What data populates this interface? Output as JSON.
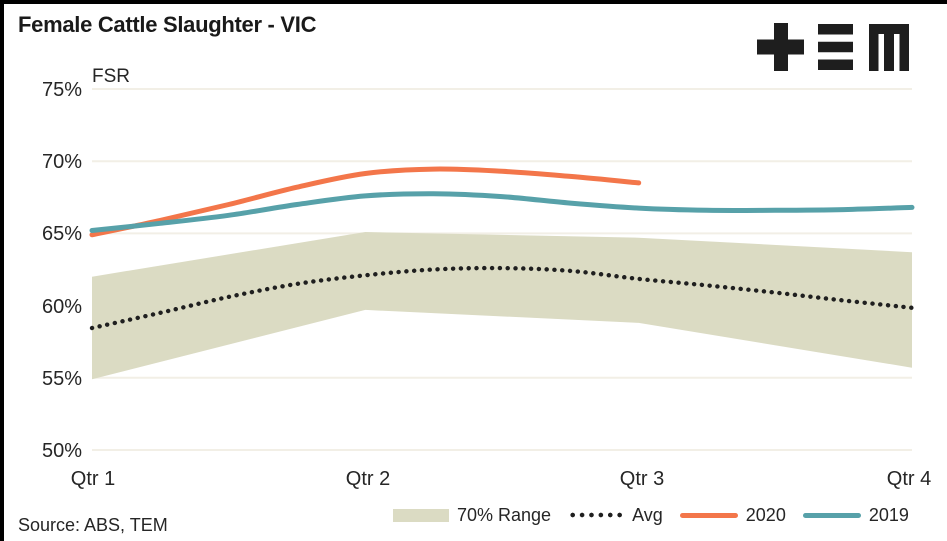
{
  "title": "Female Cattle Slaughter - VIC",
  "logo_name": "TEM plus-equals-M logo",
  "source": "Source: ABS, TEM",
  "colors": {
    "band": "#dbdbc3",
    "avg": "#1f1f1f",
    "line_2020": "#f3764a",
    "line_2019": "#57a1a9",
    "gridline": "#f2efe6",
    "text": "#262626",
    "logo": "#1e1e1e",
    "border": "#000000"
  },
  "legend": {
    "items": [
      {
        "label": "70% Range",
        "marker": "band-swatch"
      },
      {
        "label": "Avg",
        "marker": "dotted-line"
      },
      {
        "label": "2020",
        "marker": "orange-line"
      },
      {
        "label": "2019",
        "marker": "teal-line"
      }
    ]
  },
  "chart_data": {
    "type": "line",
    "title": "Female Cattle Slaughter - VIC",
    "ylabel": "FSR",
    "xlabel": "",
    "ylim": [
      50,
      75
    ],
    "grid": "horizontal only",
    "legend_position": "bottom",
    "yticks": [
      75,
      70,
      65,
      60,
      55,
      50
    ],
    "ytick_labels": [
      "75%",
      "70%",
      "65%",
      "60%",
      "55%",
      "50%"
    ],
    "xticks": [
      1,
      2,
      3,
      4
    ],
    "xtick_labels": [
      "Qtr 1",
      "Qtr 2",
      "Qtr 3",
      "Qtr 4"
    ],
    "band": {
      "name": "70% Range",
      "color": "#dbdbc3",
      "x": [
        1,
        2,
        3,
        4
      ],
      "top": [
        62.0,
        65.1,
        64.7,
        63.7
      ],
      "bottom": [
        54.9,
        59.7,
        58.8,
        55.7
      ]
    },
    "series": [
      {
        "name": "Avg",
        "style": "dotted",
        "color": "#1f1f1f",
        "x": [
          1,
          1.25,
          1.5,
          1.75,
          2,
          2.25,
          2.5,
          2.75,
          3,
          3.25,
          3.5,
          3.75,
          4
        ],
        "values": [
          58.45,
          59.5,
          60.6,
          61.5,
          62.1,
          62.5,
          62.6,
          62.4,
          61.85,
          61.4,
          60.9,
          60.35,
          59.85
        ]
      },
      {
        "name": "2020",
        "style": "solid",
        "color": "#f3764a",
        "x": [
          1,
          1.25,
          1.5,
          1.75,
          2,
          2.25,
          2.5,
          2.75,
          3
        ],
        "values": [
          64.9,
          65.9,
          67.0,
          68.2,
          69.15,
          69.45,
          69.3,
          68.95,
          68.5
        ]
      },
      {
        "name": "2019",
        "style": "solid",
        "color": "#57a1a9",
        "x": [
          1,
          1.25,
          1.5,
          1.75,
          2,
          2.25,
          2.5,
          2.75,
          3,
          3.25,
          3.5,
          3.75,
          4
        ],
        "values": [
          65.2,
          65.7,
          66.25,
          67.0,
          67.6,
          67.75,
          67.55,
          67.1,
          66.75,
          66.6,
          66.6,
          66.65,
          66.8
        ]
      }
    ]
  }
}
